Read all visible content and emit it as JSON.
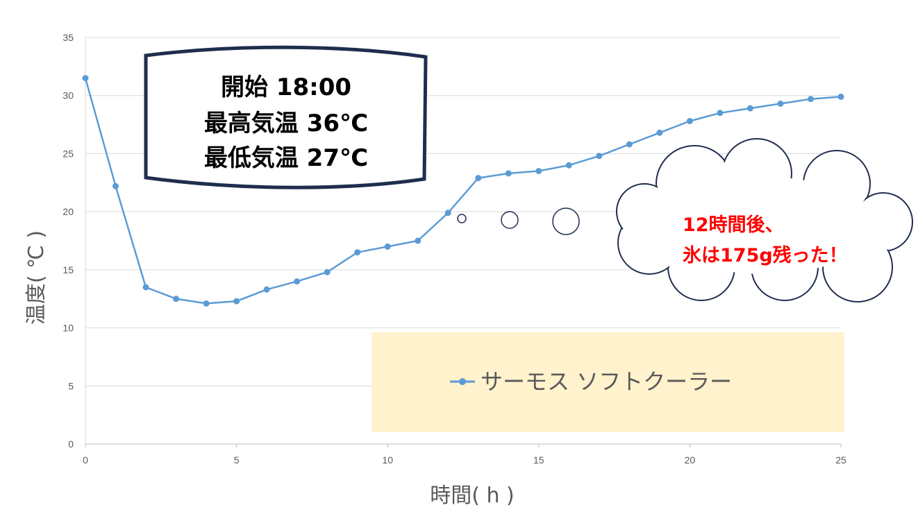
{
  "chart_data": {
    "type": "line",
    "xlabel": "時間( h )",
    "ylabel": "温度( ℃ )",
    "xlim": [
      0,
      25
    ],
    "ylim": [
      0,
      35
    ],
    "xticks": [
      "0",
      "5",
      "10",
      "15",
      "20",
      "25"
    ],
    "yticks": [
      "0",
      "5",
      "10",
      "15",
      "20",
      "25",
      "30",
      "35"
    ],
    "grid": "horizontal",
    "legend_placement": "bottom-right",
    "series": [
      {
        "name": "サーモス ソフトクーラー",
        "color": "#5b9bd5",
        "x": [
          0,
          1,
          2,
          3,
          4,
          5,
          6,
          7,
          8,
          9,
          10,
          11,
          12,
          13,
          14,
          15,
          16,
          17,
          18,
          19,
          20,
          21,
          22,
          23,
          24,
          25
        ],
        "y": [
          31.5,
          22.2,
          13.5,
          12.5,
          12.1,
          12.3,
          13.3,
          14.0,
          14.8,
          16.5,
          17.0,
          17.5,
          19.9,
          22.9,
          23.3,
          23.5,
          24.0,
          24.8,
          25.8,
          26.8,
          27.8,
          28.5,
          28.9,
          29.3,
          29.7,
          29.9
        ]
      }
    ],
    "annotations": {
      "info_box": [
        "開始 18:00",
        "最高気温 36℃",
        "最低気温 27℃"
      ],
      "cloud": [
        "12時間後、",
        "氷は175g残った！"
      ],
      "cloud_text_color": "#ff0000"
    }
  }
}
